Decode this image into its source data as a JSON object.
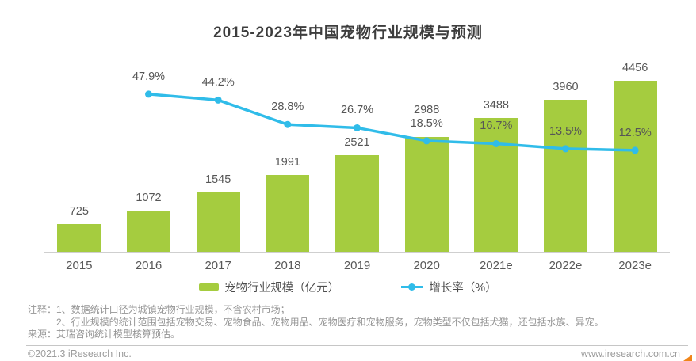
{
  "title": "2015-2023年中国宠物行业规模与预测",
  "chart_data": {
    "type": "bar+line combo",
    "categories": [
      "2015",
      "2016",
      "2017",
      "2018",
      "2019",
      "2020",
      "2021e",
      "2022e",
      "2023e"
    ],
    "series": [
      {
        "name": "宠物行业规模（亿元）",
        "type": "bar",
        "color": "#a5cc3f",
        "unit": "亿元",
        "values": [
          725,
          1072,
          1545,
          1991,
          2521,
          2988,
          3488,
          3960,
          4456
        ]
      },
      {
        "name": "增长率（%）",
        "type": "line",
        "color": "#30bce9",
        "unit": "%",
        "values": [
          null,
          47.9,
          44.2,
          28.8,
          26.7,
          18.5,
          16.7,
          13.5,
          12.5
        ]
      }
    ],
    "title": "2015-2023年中国宠物行业规模与预测",
    "xlabel": "",
    "ylabel": "",
    "grid": false,
    "value_labels_shown": true,
    "legend_position": "bottom"
  },
  "legend": {
    "bar_label": "宠物行业规模（亿元）",
    "line_label": "增长率（%）"
  },
  "notes": {
    "line1": "注释：1、数据统计口径为城镇宠物行业规模，不含农村市场；",
    "line2": "2、行业规模的统计范围包括宠物交易、宠物食品、宠物用品、宠物医疗和宠物服务，宠物类型不仅包括犬猫，还包括水族、异宠。",
    "line3": "来源：艾瑞咨询统计模型核算预估。"
  },
  "footer": {
    "copyright": "©2021.3 iResearch Inc.",
    "website": "www.iresearch.com.cn"
  },
  "colors": {
    "bar": "#a5cc3f",
    "line": "#30bce9",
    "accent": "#f08519"
  }
}
